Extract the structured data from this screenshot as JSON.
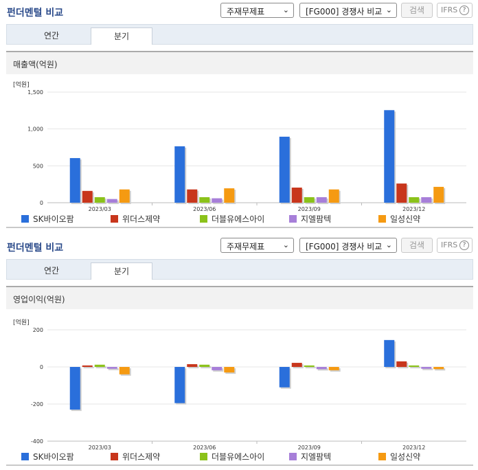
{
  "header": {
    "title": "펀더멘털 비교",
    "select_topic": "주재무제표",
    "select_group": "[FG000] 경쟁사 비교",
    "search_label": "검색",
    "ifrs_label": "IFRS",
    "ifrs_help": "?"
  },
  "tabs": [
    {
      "label": "연간"
    },
    {
      "label": "분기"
    }
  ],
  "active_tab": "분기",
  "colors": {
    "SK바이오팜": "#2a6fdb",
    "위더스제약": "#c8361c",
    "더블유에스아이": "#8bc21a",
    "지엘팜텍": "#a77fd9",
    "일성신약": "#f59a12"
  },
  "chart_data": [
    {
      "type": "bar",
      "title": "매출액(억원)",
      "unit_label": "[억원]",
      "categories": [
        "2023/03",
        "2023/06",
        "2023/09",
        "2023/12"
      ],
      "ylim": [
        0,
        1500
      ],
      "yticks": [
        0,
        500,
        1000,
        1500
      ],
      "ytick_labels": [
        "0",
        "500",
        "1,000",
        "1,500"
      ],
      "grid": true,
      "legend": "bottom",
      "series": [
        {
          "name": "SK바이오팜",
          "values": [
            605,
            765,
            895,
            1255
          ]
        },
        {
          "name": "위더스제약",
          "values": [
            160,
            180,
            205,
            260
          ]
        },
        {
          "name": "더블유에스아이",
          "values": [
            75,
            75,
            75,
            75
          ]
        },
        {
          "name": "지엘팜텍",
          "values": [
            50,
            60,
            75,
            75
          ]
        },
        {
          "name": "일성신약",
          "values": [
            180,
            195,
            180,
            215
          ]
        }
      ]
    },
    {
      "type": "bar",
      "title": "영업이익(억원)",
      "unit_label": "[억원]",
      "categories": [
        "2023/03",
        "2023/06",
        "2023/09",
        "2023/12"
      ],
      "ylim": [
        -400,
        200
      ],
      "yticks": [
        -400,
        -200,
        0,
        200
      ],
      "ytick_labels": [
        "-400",
        "-200",
        "0",
        "200"
      ],
      "grid": true,
      "legend": "bottom",
      "series": [
        {
          "name": "SK바이오팜",
          "values": [
            -230,
            -195,
            -110,
            145
          ]
        },
        {
          "name": "위더스제약",
          "values": [
            8,
            15,
            22,
            30
          ]
        },
        {
          "name": "더블유에스아이",
          "values": [
            12,
            12,
            8,
            8
          ]
        },
        {
          "name": "지엘팜텍",
          "values": [
            -10,
            -18,
            -12,
            -10
          ]
        },
        {
          "name": "일성신약",
          "values": [
            -40,
            -30,
            -18,
            -12
          ]
        }
      ]
    }
  ]
}
